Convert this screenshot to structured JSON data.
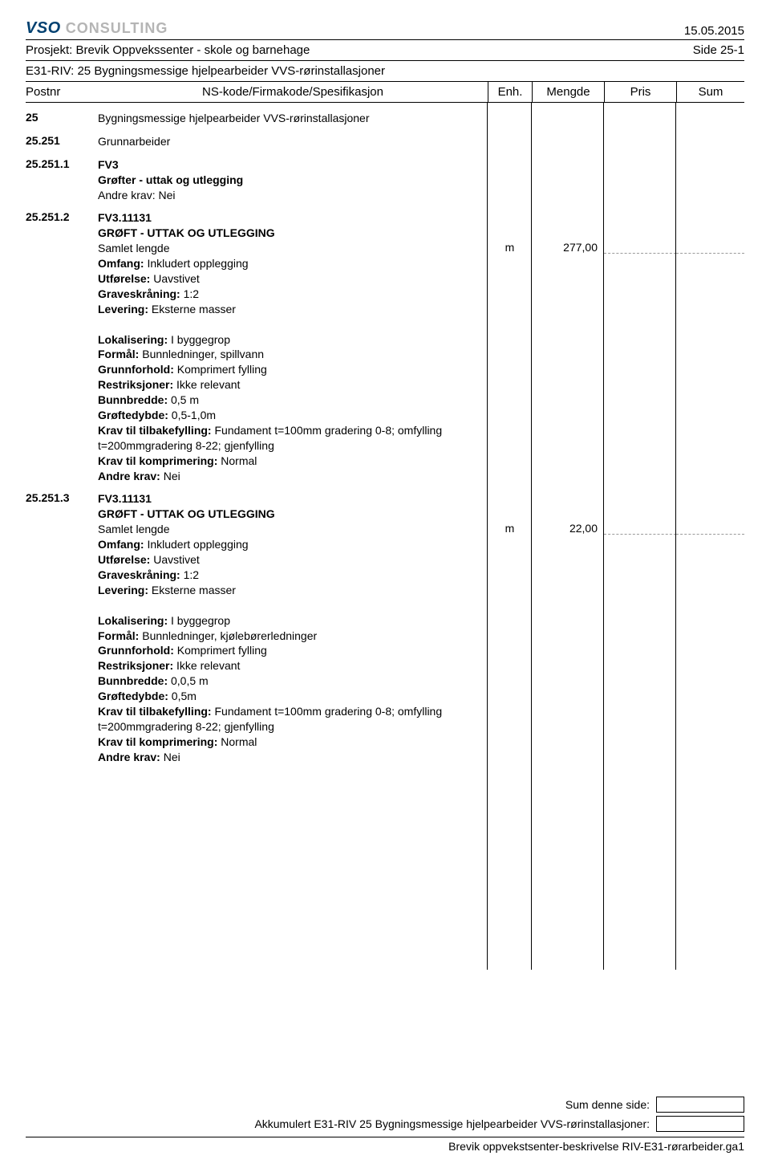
{
  "header": {
    "logo_main": "VSO",
    "logo_sub": "CONSULTING",
    "date": "15.05.2015",
    "project_label": "Prosjekt: Brevik Oppvekssenter - skole og barnehage",
    "page_label": "Side 25-1",
    "section_label": "E31-RIV: 25 Bygningsmessige hjelpearbeider VVS-rørinstallasjoner"
  },
  "columns": {
    "postnr": "Postnr",
    "spec": "NS-kode/Firmakode/Spesifikasjon",
    "enh": "Enh.",
    "mengde": "Mengde",
    "pris": "Pris",
    "sum": "Sum"
  },
  "rows": [
    {
      "postnr": "25",
      "title": "Bygningsmessige hjelpearbeider VVS-rørinstallasjoner"
    },
    {
      "postnr": "25.251",
      "title": "Grunnarbeider"
    },
    {
      "postnr": "25.251.1",
      "code": "FV3",
      "bold_lines": [
        "Grøfter - uttak og utlegging"
      ],
      "lines": [
        "Andre krav: Nei"
      ]
    },
    {
      "postnr": "25.251.2",
      "code": "FV3.11131",
      "bold_lines": [
        "GRØFT - UTTAK OG UTLEGGING"
      ],
      "measure_label": "Samlet lengde",
      "enh": "m",
      "mengde": "277,00",
      "spec_lines": [
        "Omfang: Inkludert opplegging",
        "Utførelse: Uavstivet",
        "Graveskråning: 1:2",
        "Levering: Eksterne masser"
      ],
      "desc_lines": [
        "Lokalisering: I byggegrop",
        "Formål: Bunnledninger, spillvann",
        "Grunnforhold: Komprimert fylling",
        "Restriksjoner: Ikke relevant",
        "Bunnbredde: 0,5 m",
        "Grøftedybde: 0,5-1,0m",
        "Krav til tilbakefylling: Fundament t=100mm gradering 0-8; omfylling t=200mmgradering 8-22; gjenfylling",
        "Krav til komprimering: Normal",
        "Andre krav: Nei"
      ]
    },
    {
      "postnr": "25.251.3",
      "code": "FV3.11131",
      "bold_lines": [
        "GRØFT - UTTAK OG UTLEGGING"
      ],
      "measure_label": "Samlet lengde",
      "enh": "m",
      "mengde": "22,00",
      "spec_lines": [
        "Omfang: Inkludert opplegging",
        "Utførelse: Uavstivet",
        "Graveskråning: 1:2",
        "Levering: Eksterne masser"
      ],
      "desc_lines": [
        "Lokalisering: I byggegrop",
        "Formål: Bunnledninger, kjølebørerledninger",
        "Grunnforhold: Komprimert fylling",
        "Restriksjoner: Ikke relevant",
        "Bunnbredde: 0,0,5 m",
        "Grøftedybde: 0,5m",
        "Krav til tilbakefylling: Fundament t=100mm gradering 0-8; omfylling t=200mmgradering 8-22; gjenfylling",
        "Krav til komprimering: Normal",
        "Andre krav: Nei"
      ]
    }
  ],
  "footer": {
    "sum_label": "Sum denne side:",
    "acc_label": "Akkumulert E31-RIV 25 Bygningsmessige hjelpearbeider VVS-rørinstallasjoner:",
    "file_label": "Brevik oppvekstsenter-beskrivelse RIV-E31-rørarbeider.ga1"
  },
  "colors": {
    "logo_blue": "#004070",
    "logo_grey": "#b5b5b5",
    "dash_grey": "#9a9a9a",
    "text": "#000000",
    "bg": "#ffffff"
  }
}
